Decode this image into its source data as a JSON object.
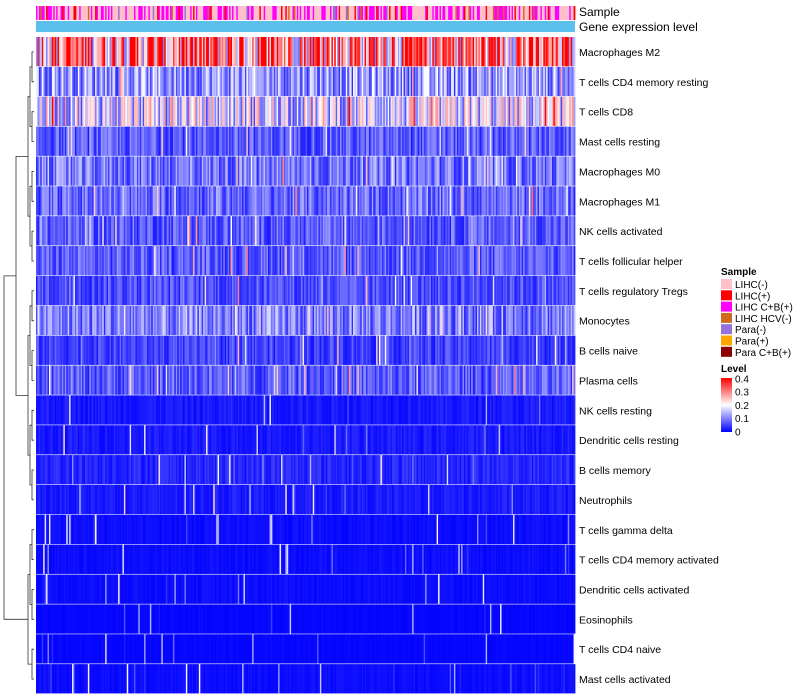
{
  "chart_data": {
    "type": "heatmap",
    "annotation_tracks": [
      "Sample",
      "Gene expression level"
    ],
    "rows": [
      {
        "label": "Macrophages M2",
        "mean": 0.3
      },
      {
        "label": "T cells CD4 memory resting",
        "mean": 0.12
      },
      {
        "label": "T cells CD8",
        "mean": 0.17
      },
      {
        "label": "Mast cells resting",
        "mean": 0.07
      },
      {
        "label": "Macrophages M0",
        "mean": 0.09
      },
      {
        "label": "Macrophages M1",
        "mean": 0.08
      },
      {
        "label": "NK cells activated",
        "mean": 0.07
      },
      {
        "label": "T cells follicular helper",
        "mean": 0.07
      },
      {
        "label": "T cells regulatory  Tregs",
        "mean": 0.06
      },
      {
        "label": "Monocytes",
        "mean": 0.1
      },
      {
        "label": "B cells naive",
        "mean": 0.05
      },
      {
        "label": "Plasma cells",
        "mean": 0.07
      },
      {
        "label": "NK cells resting",
        "mean": 0.02
      },
      {
        "label": "Dendritic cells resting",
        "mean": 0.02
      },
      {
        "label": "B cells memory",
        "mean": 0.03
      },
      {
        "label": "Neutrophils",
        "mean": 0.02
      },
      {
        "label": "T cells gamma delta",
        "mean": 0.01
      },
      {
        "label": "T cells CD4 memory activated",
        "mean": 0.01
      },
      {
        "label": "Dendritic cells activated",
        "mean": 0.01
      },
      {
        "label": "Eosinophils",
        "mean": 0.005
      },
      {
        "label": "T cells CD4 naive",
        "mean": 0.005
      },
      {
        "label": "Mast cells activated",
        "mean": 0.01
      }
    ],
    "legend": {
      "sample_title": "Sample",
      "sample_entries": [
        {
          "label": "LIHC(-)",
          "color": "#ffc0cb"
        },
        {
          "label": "LIHC(+)",
          "color": "#ff0000"
        },
        {
          "label": "LIHC C+B(+)",
          "color": "#ff00ff"
        },
        {
          "label": "LIHC HCV(-)",
          "color": "#d2691e"
        },
        {
          "label": "Para(-)",
          "color": "#9370db"
        },
        {
          "label": "Para(+)",
          "color": "#ffa500"
        },
        {
          "label": "Para C+B(+)",
          "color": "#8b0000"
        }
      ],
      "level_title": "Level",
      "level_ticks": [
        "0.4",
        "0.3",
        "0.2",
        "0.1",
        "0"
      ],
      "level_range": [
        0,
        0.4
      ],
      "colors": {
        "low": "#0000ff",
        "mid": "#ffffff",
        "high": "#ff0000"
      }
    },
    "gene_expression_color": "#5bc0eb",
    "sample_mix": {
      "LIHC(-)": 0.55,
      "LIHC C+B(+)": 0.3,
      "LIHC(+)": 0.08,
      "Para(-)": 0.04,
      "LIHC HCV(-)": 0.03
    },
    "column_count": 374
  }
}
